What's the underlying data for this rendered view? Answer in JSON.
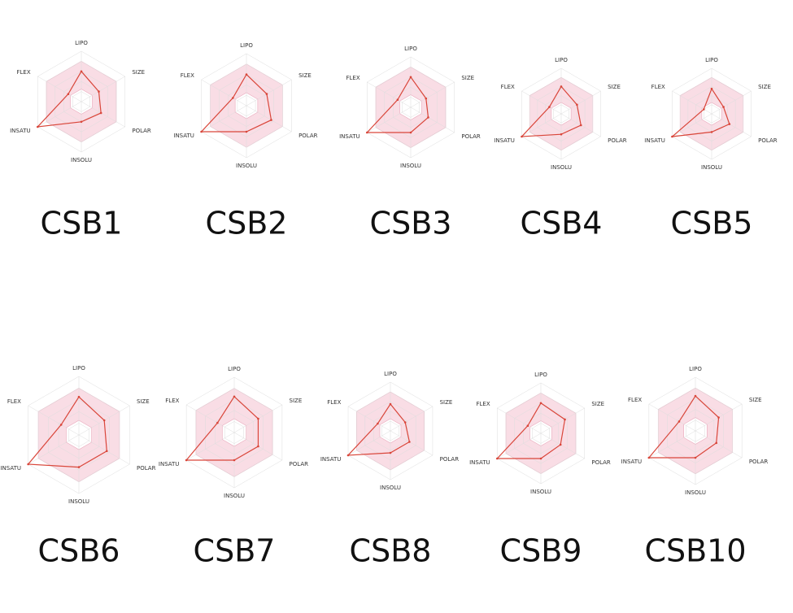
{
  "chart_data": [
    {
      "type": "radar",
      "title": "CSB1",
      "categories": [
        "LIPO",
        "SIZE",
        "POLAR",
        "INSOLU",
        "INSATU",
        "FLEX"
      ],
      "values": [
        0.6,
        0.4,
        0.45,
        0.4,
        1.0,
        0.3
      ],
      "ylim": [
        0,
        1
      ],
      "shaded_range": [
        0.25,
        0.8
      ],
      "color": "#d9463a"
    },
    {
      "type": "radar",
      "title": "CSB2",
      "categories": [
        "LIPO",
        "SIZE",
        "POLAR",
        "INSOLU",
        "INSATU",
        "FLEX"
      ],
      "values": [
        0.6,
        0.45,
        0.55,
        0.5,
        1.0,
        0.3
      ],
      "ylim": [
        0,
        1
      ],
      "shaded_range": [
        0.25,
        0.8
      ],
      "color": "#d9463a"
    },
    {
      "type": "radar",
      "title": "CSB3",
      "categories": [
        "LIPO",
        "SIZE",
        "POLAR",
        "INSOLU",
        "INSATU",
        "FLEX"
      ],
      "values": [
        0.6,
        0.35,
        0.4,
        0.5,
        1.0,
        0.3
      ],
      "ylim": [
        0,
        1
      ],
      "shaded_range": [
        0.25,
        0.8
      ],
      "color": "#d9463a"
    },
    {
      "type": "radar",
      "title": "CSB4",
      "categories": [
        "LIPO",
        "SIZE",
        "POLAR",
        "INSOLU",
        "INSATU",
        "FLEX"
      ],
      "values": [
        0.6,
        0.4,
        0.5,
        0.45,
        1.0,
        0.3
      ],
      "ylim": [
        0,
        1
      ],
      "shaded_range": [
        0.25,
        0.8
      ],
      "color": "#d9463a"
    },
    {
      "type": "radar",
      "title": "CSB5",
      "categories": [
        "LIPO",
        "SIZE",
        "POLAR",
        "INSOLU",
        "INSATU",
        "FLEX"
      ],
      "values": [
        0.55,
        0.3,
        0.45,
        0.4,
        1.0,
        0.2
      ],
      "ylim": [
        0,
        1
      ],
      "shaded_range": [
        0.25,
        0.8
      ],
      "color": "#d9463a"
    },
    {
      "type": "radar",
      "title": "CSB6",
      "categories": [
        "LIPO",
        "SIZE",
        "POLAR",
        "INSOLU",
        "INSATU",
        "FLEX"
      ],
      "values": [
        0.65,
        0.5,
        0.55,
        0.55,
        1.0,
        0.35
      ],
      "ylim": [
        0,
        1
      ],
      "shaded_range": [
        0.25,
        0.8
      ],
      "color": "#d9463a"
    },
    {
      "type": "radar",
      "title": "CSB7",
      "categories": [
        "LIPO",
        "SIZE",
        "POLAR",
        "INSOLU",
        "INSATU",
        "FLEX"
      ],
      "values": [
        0.65,
        0.5,
        0.5,
        0.5,
        1.0,
        0.35
      ],
      "ylim": [
        0,
        1
      ],
      "shaded_range": [
        0.25,
        0.8
      ],
      "color": "#d9463a"
    },
    {
      "type": "radar",
      "title": "CSB8",
      "categories": [
        "LIPO",
        "SIZE",
        "POLAR",
        "INSOLU",
        "INSATU",
        "FLEX"
      ],
      "values": [
        0.55,
        0.35,
        0.45,
        0.45,
        1.0,
        0.3
      ],
      "ylim": [
        0,
        1
      ],
      "shaded_range": [
        0.25,
        0.8
      ],
      "color": "#d9463a"
    },
    {
      "type": "radar",
      "title": "CSB9",
      "categories": [
        "LIPO",
        "SIZE",
        "POLAR",
        "INSOLU",
        "INSATU",
        "FLEX"
      ],
      "values": [
        0.6,
        0.55,
        0.45,
        0.5,
        1.0,
        0.3
      ],
      "ylim": [
        0,
        1
      ],
      "shaded_range": [
        0.25,
        0.8
      ],
      "color": "#d9463a"
    },
    {
      "type": "radar",
      "title": "CSB10",
      "categories": [
        "LIPO",
        "SIZE",
        "POLAR",
        "INSOLU",
        "INSATU",
        "FLEX"
      ],
      "values": [
        0.65,
        0.5,
        0.45,
        0.5,
        1.0,
        0.35
      ],
      "ylim": [
        0,
        1
      ],
      "shaded_range": [
        0.25,
        0.8
      ],
      "color": "#d9463a"
    }
  ]
}
